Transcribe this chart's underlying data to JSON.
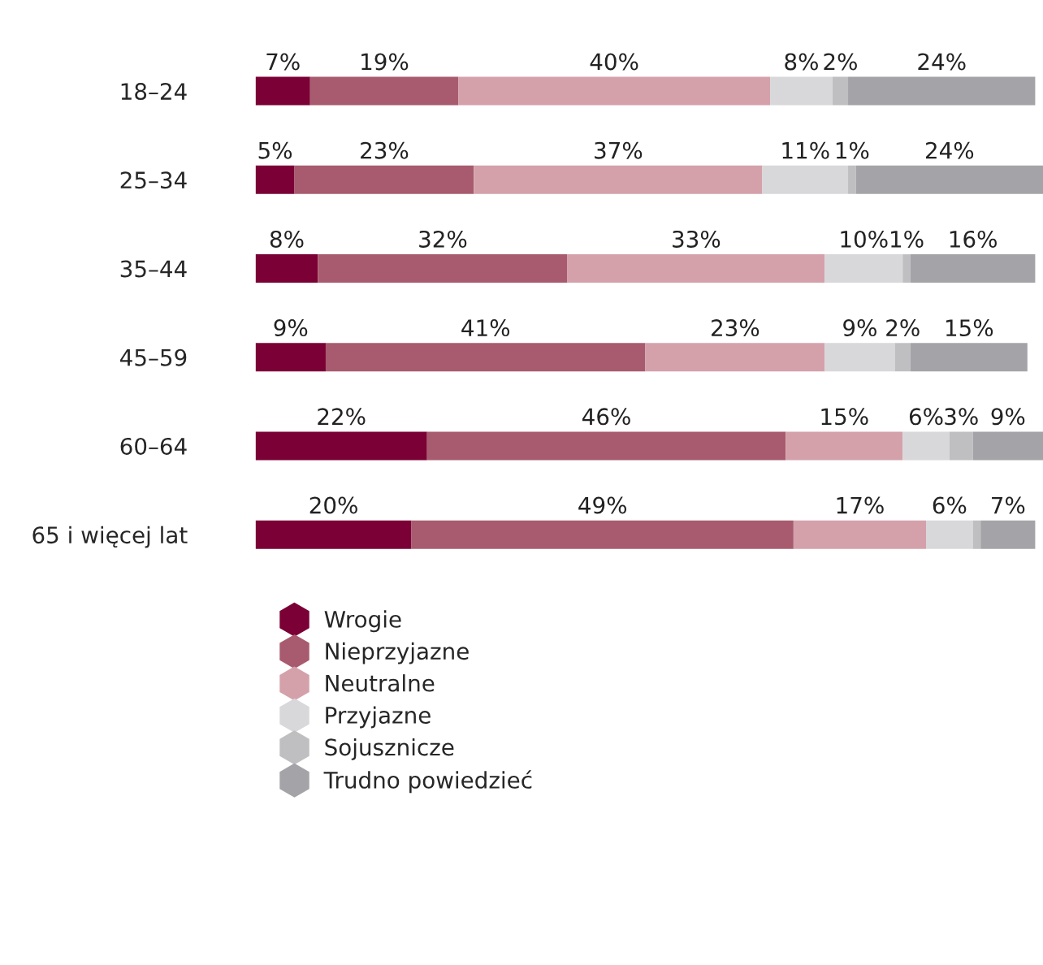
{
  "chart_data": {
    "type": "bar",
    "orientation": "horizontal",
    "stacked": true,
    "tick_labels": "y",
    "legend": "bottom",
    "grid": false,
    "categories": [
      "18–24",
      "25–34",
      "35–44",
      "45–59",
      "60–64",
      "65 i więcej lat"
    ],
    "series": [
      {
        "name": "Wrogie",
        "color": "#7b0035",
        "values": [
          7,
          5,
          8,
          9,
          22,
          20
        ],
        "value_labels": [
          "7%",
          "5%",
          "8%",
          "9%",
          "22%",
          "20%"
        ]
      },
      {
        "name": "Nieprzyjazne",
        "color": "#a85b6e",
        "values": [
          19,
          23,
          32,
          41,
          46,
          49
        ],
        "value_labels": [
          "19%",
          "23%",
          "32%",
          "41%",
          "46%",
          "49%"
        ]
      },
      {
        "name": "Neutralne",
        "color": "#d4a1ab",
        "values": [
          40,
          37,
          33,
          23,
          15,
          17
        ],
        "value_labels": [
          "40%",
          "37%",
          "33%",
          "23%",
          "15%",
          "17%"
        ]
      },
      {
        "name": "Przyjazne",
        "color": "#d8d8da",
        "values": [
          8,
          11,
          10,
          9,
          6,
          6
        ],
        "value_labels": [
          "8%",
          "11%",
          "10%",
          "9%",
          "6%",
          "6%"
        ]
      },
      {
        "name": "Sojusznicze",
        "color": "#bfbfc2",
        "values": [
          2,
          1,
          1,
          2,
          3,
          1
        ],
        "value_labels": [
          "2%",
          "1%",
          "1%",
          "2%",
          "3%",
          null
        ]
      },
      {
        "name": "Trudno powiedzieć",
        "color": "#a4a4a8",
        "values": [
          24,
          24,
          16,
          15,
          9,
          7
        ],
        "value_labels": [
          "24%",
          "24%",
          "16%",
          "15%",
          "9%",
          "7%"
        ]
      }
    ]
  }
}
